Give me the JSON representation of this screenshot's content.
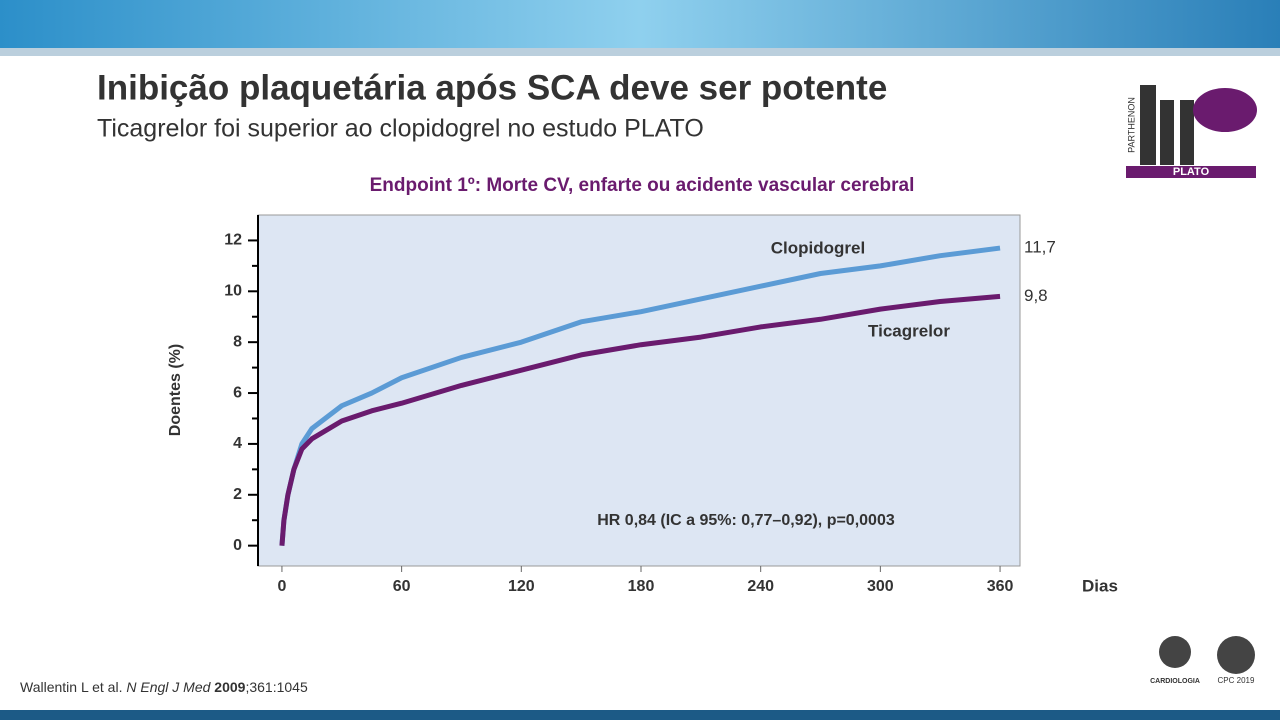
{
  "slide": {
    "title": "Inibição plaquetária após SCA deve ser potente",
    "subtitle": "Ticagrelor foi superior ao clopidogrel no estudo PLATO",
    "reference": [
      "Wallentin L et al. ",
      "N Engl J Med",
      " 2009",
      ";361:1045"
    ],
    "logo": {
      "top": "PARTHENON",
      "bottom": "PLATO"
    },
    "footer_logos": [
      "CARDIOLOGIA",
      "CPC 2019"
    ]
  },
  "chart_data": {
    "type": "line",
    "title": "Endpoint 1º: Morte CV, enfarte ou acidente vascular cerebral",
    "x_label": "Dias",
    "y_label": "Doentes (%)",
    "annotation": "HR 0,84 (IC a 95%: 0,77–0,92), p=0,0003",
    "xlim": [
      -12,
      370
    ],
    "xticks": [
      0,
      60,
      120,
      180,
      240,
      300,
      360
    ],
    "ylim": [
      -0.8,
      13
    ],
    "yticks": [
      0,
      2,
      4,
      6,
      8,
      10,
      12
    ],
    "yminorticks": [
      1,
      3,
      5,
      7,
      9,
      11
    ],
    "x": [
      0,
      1,
      3,
      6,
      10,
      15,
      30,
      45,
      60,
      90,
      120,
      150,
      180,
      210,
      240,
      270,
      300,
      330,
      360
    ],
    "series": [
      {
        "name": "Clopidogrel",
        "color": "#5b9bd5",
        "end_label": "11,7",
        "values": [
          0,
          1,
          2,
          3,
          4,
          4.6,
          5.5,
          6.0,
          6.6,
          7.4,
          8.0,
          8.8,
          9.2,
          9.7,
          10.2,
          10.7,
          11.0,
          11.4,
          11.7
        ]
      },
      {
        "name": "Ticagrelor",
        "color": "#6a1b6e",
        "end_label": "9,8",
        "values": [
          0,
          1,
          2,
          3,
          3.8,
          4.2,
          4.9,
          5.3,
          5.6,
          6.3,
          6.9,
          7.5,
          7.9,
          8.2,
          8.6,
          8.9,
          9.3,
          9.6,
          9.8
        ]
      }
    ]
  }
}
